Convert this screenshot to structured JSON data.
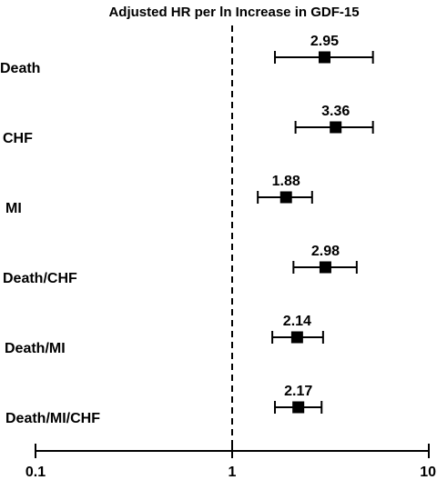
{
  "chart_data": {
    "type": "forest",
    "title": "Adjusted HR per ln Increase in GDF-15",
    "x_scale": "log",
    "xlim": [
      0.1,
      10
    ],
    "reference_line": 1,
    "x_ticks": [
      "0.1",
      "1",
      "10"
    ],
    "rows": [
      {
        "label": "Death",
        "hr": 2.95,
        "hr_label": "2.95",
        "ci_low": 1.65,
        "ci_high": 5.2
      },
      {
        "label": "CHF",
        "hr": 3.36,
        "hr_label": "3.36",
        "ci_low": 2.1,
        "ci_high": 5.2
      },
      {
        "label": "MI",
        "hr": 1.88,
        "hr_label": "1.88",
        "ci_low": 1.35,
        "ci_high": 2.55
      },
      {
        "label": "Death/CHF",
        "hr": 2.98,
        "hr_label": "2.98",
        "ci_low": 2.05,
        "ci_high": 4.3
      },
      {
        "label": "Death/MI",
        "hr": 2.14,
        "hr_label": "2.14",
        "ci_low": 1.6,
        "ci_high": 2.9
      },
      {
        "label": "Death/MI/CHF",
        "hr": 2.17,
        "hr_label": "2.17",
        "ci_low": 1.65,
        "ci_high": 2.85
      }
    ]
  }
}
